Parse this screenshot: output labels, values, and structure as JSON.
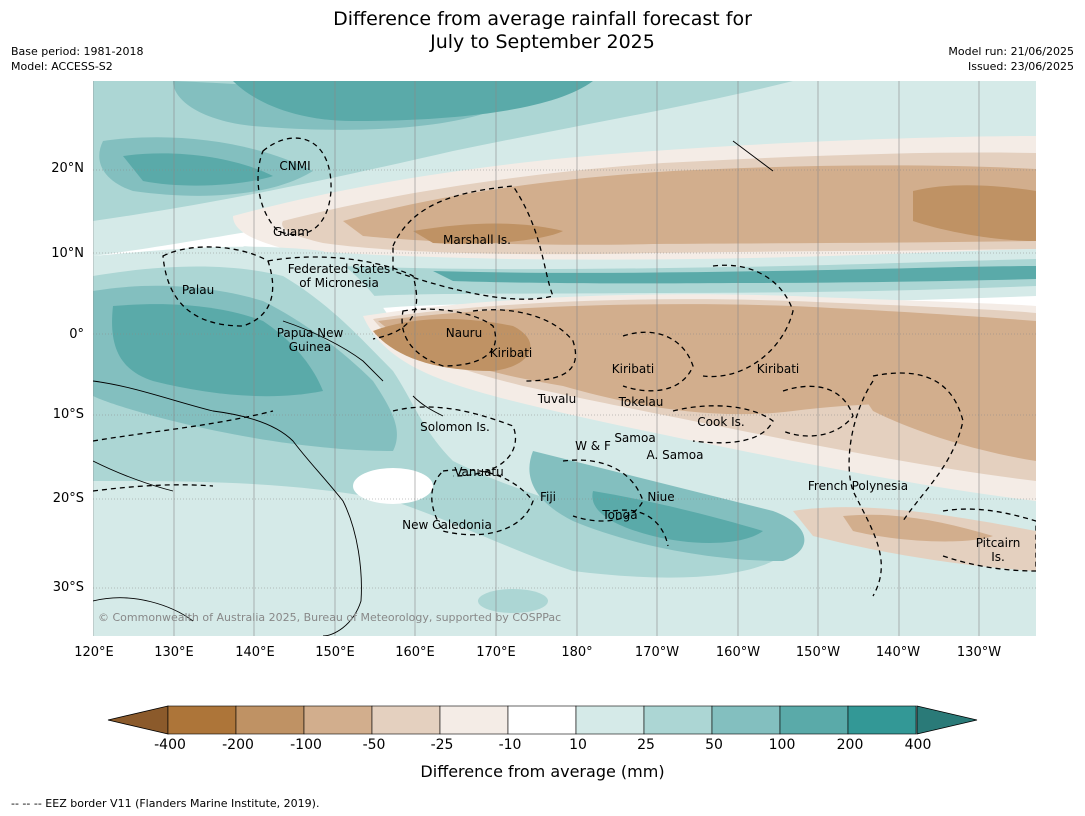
{
  "title_line1": "Difference from average rainfall forecast for",
  "title_line2": "July to September 2025",
  "base_period": "Base period: 1981-2018",
  "model": "Model: ACCESS-S2",
  "model_run": "Model run: 21/06/2025",
  "issued": "Issued: 23/06/2025",
  "lat_labels": [
    "20°N",
    "10°N",
    "0°",
    "10°S",
    "20°S",
    "30°S"
  ],
  "lon_labels": [
    "120°E",
    "130°E",
    "140°E",
    "150°E",
    "160°E",
    "170°E",
    "180°",
    "170°W",
    "160°W",
    "150°W",
    "140°W",
    "130°W"
  ],
  "copyright": "© Commonwealth of Australia 2025, Bureau of Meteorology, supported by COSPPac",
  "regions": [
    {
      "name": "CNMI"
    },
    {
      "name": "Guam"
    },
    {
      "name": "Marshall Is."
    },
    {
      "name": "Federated States"
    },
    {
      "name": "of Micronesia"
    },
    {
      "name": "Palau"
    },
    {
      "name": "Papua New"
    },
    {
      "name": "Guinea"
    },
    {
      "name": "Nauru"
    },
    {
      "name": "Kiribati"
    },
    {
      "name": "Kiribati"
    },
    {
      "name": "Kiribati"
    },
    {
      "name": "Tuvalu"
    },
    {
      "name": "Tokelau"
    },
    {
      "name": "Cook Is."
    },
    {
      "name": "Solomon Is."
    },
    {
      "name": "W & F"
    },
    {
      "name": "Samoa"
    },
    {
      "name": "A. Samoa"
    },
    {
      "name": "Vanuatu"
    },
    {
      "name": "Fiji"
    },
    {
      "name": "Niue"
    },
    {
      "name": "Tonga"
    },
    {
      "name": "French Polynesia"
    },
    {
      "name": "New Caledonia"
    },
    {
      "name": "Pitcairn"
    },
    {
      "name": "Is."
    }
  ],
  "colorbar": {
    "ticks": [
      "-400",
      "-200",
      "-100",
      "-50",
      "-25",
      "-10",
      "10",
      "25",
      "50",
      "100",
      "200",
      "400"
    ],
    "colors": [
      "#ad7539",
      "#bf9264",
      "#d2ae8d",
      "#e4d0bf",
      "#f4ece6",
      "#ffffff",
      "#d5eae8",
      "#acd6d4",
      "#83bfbf",
      "#5aaaa9",
      "#339896"
    ],
    "under_color": "#8b5a2b",
    "over_color": "#2a7a78",
    "label": "Difference from average (mm)"
  },
  "footer": "--  --  -- EEZ border V11 (Flanders Marine Institute, 2019)."
}
